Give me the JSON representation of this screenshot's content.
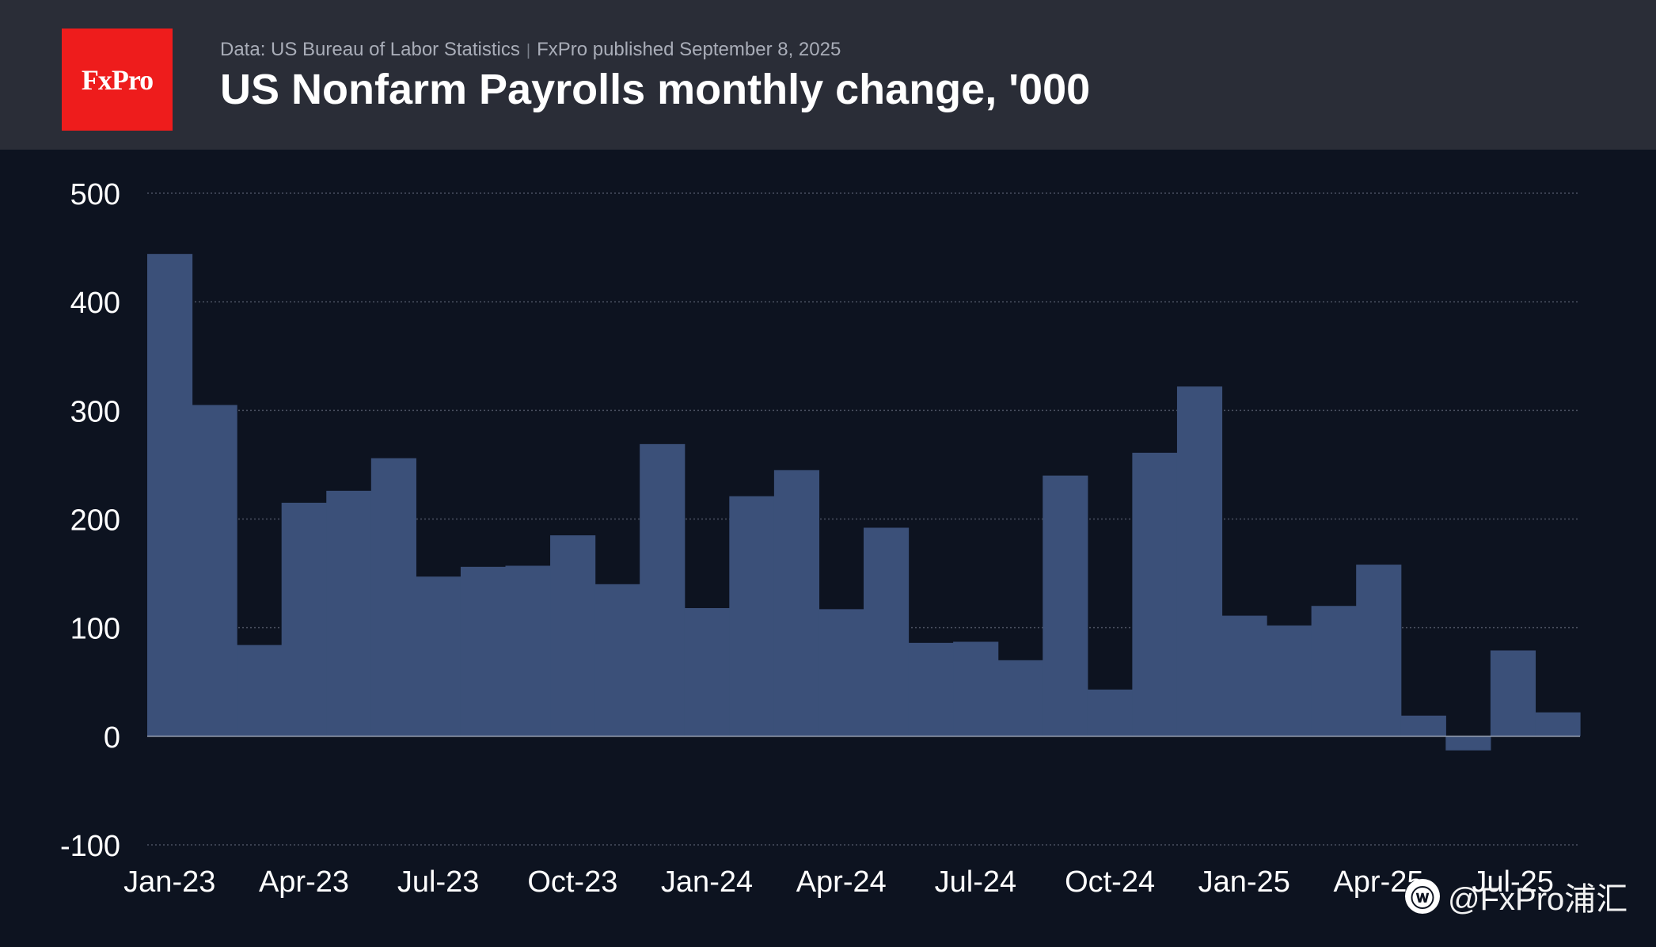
{
  "header": {
    "logo_text": "FxPro",
    "source": "Data: US Bureau of Labor Statistics",
    "separator": "|",
    "published": "FxPro published September 8, 2025",
    "title": "US Nonfarm Payrolls monthly change, '000"
  },
  "colors": {
    "background": "#0d1320",
    "header_bg": "#2a2d37",
    "logo_red": "#ee1c1c",
    "bar_fill": "#3b5079",
    "grid": "#4a5060",
    "axis_text": "#ffffff"
  },
  "chart_data": {
    "type": "area",
    "style": "step",
    "title": "US Nonfarm Payrolls monthly change, '000",
    "xlabel": "",
    "ylabel": "",
    "ylim": [
      -100,
      500
    ],
    "yticks": [
      500,
      400,
      300,
      200,
      100,
      0,
      -100
    ],
    "grid": true,
    "xtick_labels": [
      "Jan-23",
      "Apr-23",
      "Jul-23",
      "Oct-23",
      "Jan-24",
      "Apr-24",
      "Jul-24",
      "Oct-24",
      "Jan-25",
      "Apr-25",
      "Jul-25"
    ],
    "x": [
      "Jan-23",
      "Feb-23",
      "Mar-23",
      "Apr-23",
      "May-23",
      "Jun-23",
      "Jul-23",
      "Aug-23",
      "Sep-23",
      "Oct-23",
      "Nov-23",
      "Dec-23",
      "Jan-24",
      "Feb-24",
      "Mar-24",
      "Apr-24",
      "May-24",
      "Jun-24",
      "Jul-24",
      "Aug-24",
      "Sep-24",
      "Oct-24",
      "Nov-24",
      "Dec-24",
      "Jan-25",
      "Feb-25",
      "Mar-25",
      "Apr-25",
      "May-25",
      "Jun-25",
      "Jul-25",
      "Aug-25"
    ],
    "series": [
      {
        "values": [
          444,
          305,
          84,
          215,
          226,
          256,
          147,
          156,
          157,
          185,
          140,
          269,
          118,
          221,
          245,
          117,
          192,
          86,
          87,
          70,
          240,
          43,
          261,
          322,
          111,
          102,
          120,
          158,
          19,
          -13,
          79,
          22
        ]
      }
    ]
  },
  "watermark": {
    "icon": "weibo-icon",
    "text": "@FxPro浦汇"
  }
}
